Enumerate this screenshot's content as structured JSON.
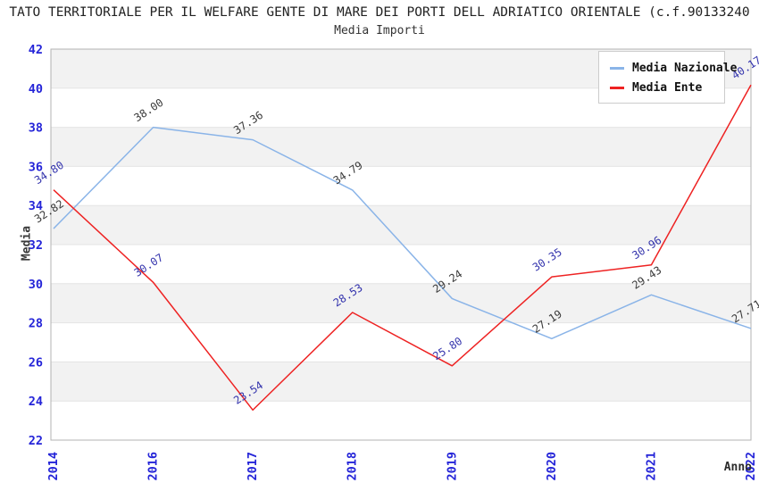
{
  "title": "TATO TERRITORIALE PER IL WELFARE GENTE DI MARE DEI PORTI DELL ADRIATICO ORIENTALE (c.f.90133240",
  "subtitle": "Media Importi",
  "colors": {
    "tick_label": "#2424d8",
    "band": "#f2f2f2",
    "grid": "#e4e4e4",
    "plot_border": "#b3b3b3",
    "axis_title": "#3a3a3a"
  },
  "chart_data": {
    "type": "line",
    "title": "Media Importi",
    "xlabel": "Anno",
    "ylabel": "Media",
    "categories": [
      "2014",
      "2016",
      "2017",
      "2018",
      "2019",
      "2020",
      "2021",
      "2022"
    ],
    "series": [
      {
        "name": "Media Nazionale",
        "color": "#8ab4e8",
        "label_color": "#3a3a3a",
        "values": [
          32.82,
          38.0,
          37.36,
          34.79,
          29.24,
          27.19,
          29.43,
          27.71
        ]
      },
      {
        "name": "Media Ente",
        "color": "#ee2222",
        "label_color": "#3434ad",
        "values": [
          34.8,
          30.07,
          23.54,
          28.53,
          25.8,
          30.35,
          30.96,
          40.17
        ]
      }
    ],
    "ylim": [
      22,
      42
    ],
    "ytick_step": 2,
    "grid": true,
    "alternating_bands": true,
    "legend_position": "top-right"
  }
}
